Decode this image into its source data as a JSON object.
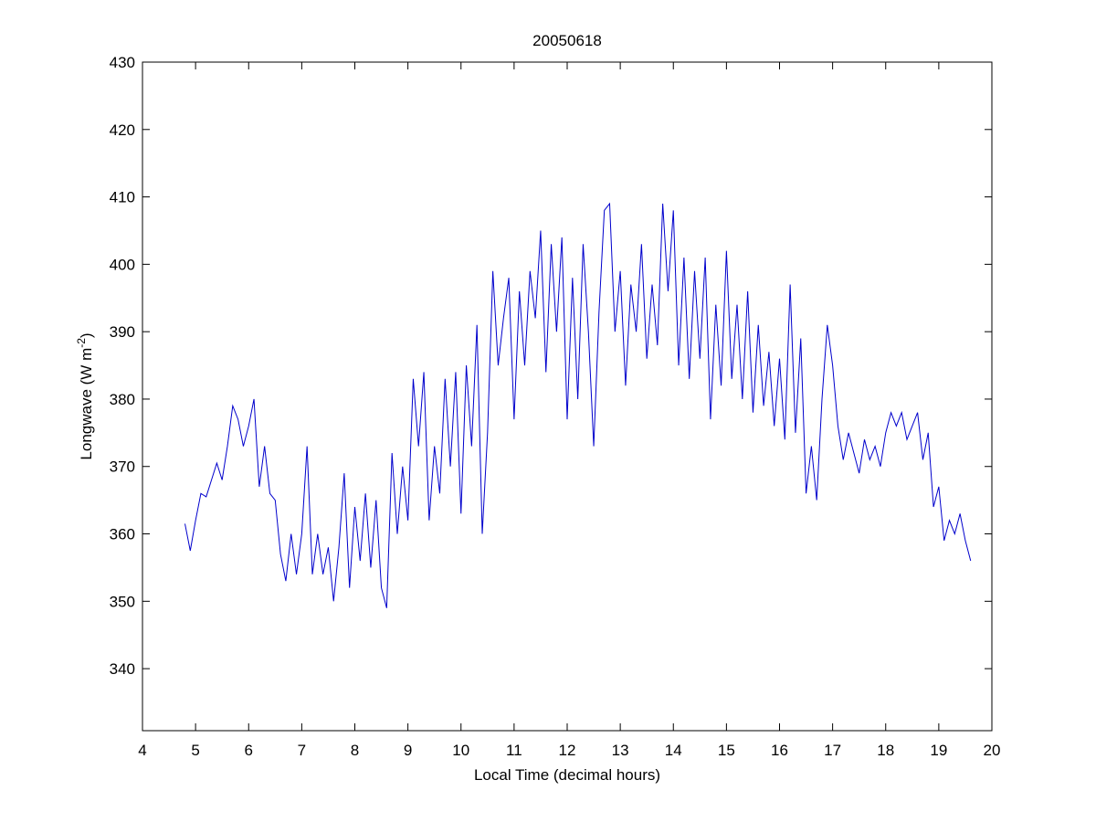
{
  "chart_data": {
    "type": "line",
    "title": "20050618",
    "xlabel": "Local Time (decimal hours)",
    "ylabel": {
      "text": "Longwave (W m",
      "superscript": "-2",
      "suffix": ")"
    },
    "x": [
      4.8,
      4.9,
      5.0,
      5.1,
      5.2,
      5.3,
      5.4,
      5.5,
      5.6,
      5.7,
      5.8,
      5.9,
      6.0,
      6.1,
      6.2,
      6.3,
      6.4,
      6.5,
      6.6,
      6.7,
      6.8,
      6.9,
      7.0,
      7.1,
      7.2,
      7.3,
      7.4,
      7.5,
      7.6,
      7.7,
      7.8,
      7.9,
      8.0,
      8.1,
      8.2,
      8.3,
      8.4,
      8.5,
      8.6,
      8.7,
      8.8,
      8.9,
      9.0,
      9.1,
      9.2,
      9.3,
      9.4,
      9.5,
      9.6,
      9.7,
      9.8,
      9.9,
      10.0,
      10.1,
      10.2,
      10.3,
      10.4,
      10.5,
      10.6,
      10.7,
      10.8,
      10.9,
      11.0,
      11.1,
      11.2,
      11.3,
      11.4,
      11.5,
      11.6,
      11.7,
      11.8,
      11.9,
      12.0,
      12.1,
      12.2,
      12.3,
      12.4,
      12.5,
      12.6,
      12.7,
      12.8,
      12.9,
      13.0,
      13.1,
      13.2,
      13.3,
      13.4,
      13.5,
      13.6,
      13.7,
      13.8,
      13.9,
      14.0,
      14.1,
      14.2,
      14.3,
      14.4,
      14.5,
      14.6,
      14.7,
      14.8,
      14.9,
      15.0,
      15.1,
      15.2,
      15.3,
      15.4,
      15.5,
      15.6,
      15.7,
      15.8,
      15.9,
      16.0,
      16.1,
      16.2,
      16.3,
      16.4,
      16.5,
      16.6,
      16.7,
      16.8,
      16.9,
      17.0,
      17.1,
      17.2,
      17.3,
      17.4,
      17.5,
      17.6,
      17.7,
      17.8,
      17.9,
      18.0,
      18.1,
      18.2,
      18.3,
      18.4,
      18.5,
      18.6,
      18.7,
      18.8,
      18.9,
      19.0,
      19.1,
      19.2,
      19.3,
      19.4,
      19.5,
      19.6
    ],
    "series": [
      {
        "name": "Longwave",
        "color": "#0000cc",
        "values": [
          361.5,
          357.5,
          362,
          366,
          365.5,
          368,
          370.5,
          368,
          373,
          379,
          377,
          373,
          376,
          380,
          367,
          373,
          366,
          365,
          357,
          353,
          360,
          354,
          360,
          373,
          354,
          360,
          354,
          358,
          350,
          358,
          369,
          352,
          364,
          356,
          366,
          355,
          365,
          352,
          349,
          372,
          360,
          370,
          362,
          383,
          373,
          384,
          362,
          373,
          366,
          383,
          370,
          384,
          363,
          385,
          373,
          391,
          360,
          375,
          399,
          385,
          392,
          398,
          377,
          396,
          385,
          399,
          392,
          405,
          384,
          403,
          390,
          404,
          377,
          398,
          380,
          403,
          390,
          373,
          393,
          408,
          409,
          390,
          399,
          382,
          397,
          390,
          403,
          386,
          397,
          388,
          409,
          396,
          408,
          385,
          401,
          383,
          399,
          386,
          401,
          377,
          394,
          382,
          402,
          383,
          394,
          380,
          396,
          378,
          391,
          379,
          387,
          376,
          386,
          374,
          397,
          375,
          389,
          366,
          373,
          365,
          380,
          391,
          385,
          376,
          371,
          375,
          372,
          369,
          374,
          371,
          373,
          370,
          375,
          378,
          376,
          378,
          374,
          376,
          378,
          371,
          375,
          364,
          367,
          359,
          362,
          360,
          363,
          359,
          356
        ]
      }
    ],
    "xlim": [
      4,
      20
    ],
    "xticks": [
      4,
      5,
      6,
      7,
      8,
      9,
      10,
      11,
      12,
      13,
      14,
      15,
      16,
      17,
      18,
      19,
      20
    ],
    "ylim": [
      330.8,
      430
    ],
    "yticks": [
      340,
      350,
      360,
      370,
      380,
      390,
      400,
      410,
      420,
      430
    ]
  }
}
